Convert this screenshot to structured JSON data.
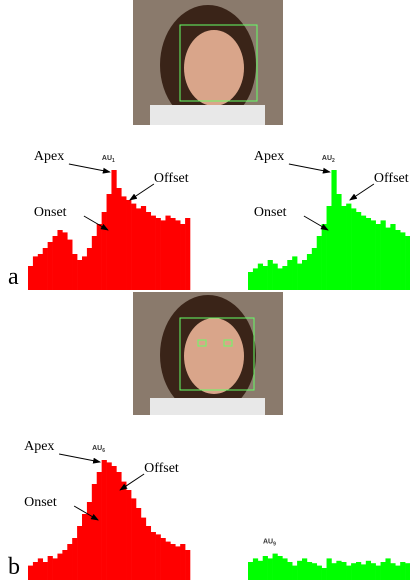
{
  "panels": [
    {
      "label": "a",
      "plots": [
        {
          "au": "AU",
          "sub": "1",
          "color": "#ff0000",
          "apex": "Apex",
          "onset": "Onset",
          "offset": "Offset",
          "values": [
            20,
            28,
            30,
            35,
            40,
            45,
            50,
            48,
            42,
            30,
            25,
            28,
            35,
            45,
            55,
            65,
            80,
            100,
            85,
            78,
            75,
            72,
            68,
            70,
            65,
            62,
            60,
            58,
            62,
            60,
            58,
            55,
            60
          ]
        },
        {
          "au": "AU",
          "sub": "2",
          "color": "#00ff00",
          "apex": "Apex",
          "onset": "Onset",
          "offset": "Offset",
          "values": [
            15,
            18,
            22,
            20,
            25,
            22,
            18,
            20,
            25,
            28,
            22,
            25,
            30,
            35,
            45,
            55,
            70,
            100,
            80,
            70,
            72,
            68,
            65,
            62,
            60,
            58,
            55,
            58,
            52,
            55,
            50,
            48,
            45
          ]
        }
      ]
    },
    {
      "label": "b",
      "plots": [
        {
          "au": "AU",
          "sub": "6",
          "color": "#ff0000",
          "apex": "Apex",
          "onset": "Onset",
          "offset": "Offset",
          "values": [
            12,
            15,
            18,
            15,
            20,
            18,
            22,
            25,
            30,
            35,
            45,
            55,
            65,
            80,
            90,
            100,
            98,
            95,
            90,
            82,
            75,
            68,
            60,
            52,
            45,
            40,
            38,
            35,
            32,
            30,
            28,
            30,
            25
          ]
        },
        {
          "au": "AU",
          "sub": "9",
          "color": "#00ff00",
          "values": [
            15,
            18,
            16,
            20,
            18,
            22,
            20,
            18,
            15,
            12,
            16,
            18,
            15,
            14,
            12,
            10,
            18,
            14,
            16,
            15,
            12,
            14,
            15,
            13,
            16,
            14,
            12,
            15,
            18,
            14,
            12,
            15,
            14
          ]
        }
      ]
    }
  ]
}
